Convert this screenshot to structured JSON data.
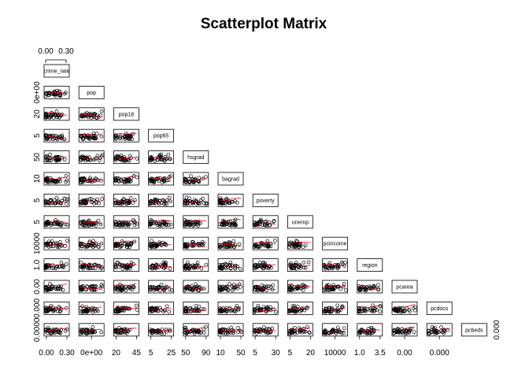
{
  "chart_data": {
    "type": "scatter",
    "subtype": "scatterplot-matrix-lower-triangle",
    "title": "Scatterplot Matrix",
    "variables": [
      "crime_rate",
      "pop",
      "pop18",
      "pop65",
      "hsgrad",
      "bagrad",
      "poverty",
      "unemp",
      "pcincome",
      "region",
      "pcarea",
      "pcdocs",
      "pcbeds"
    ],
    "panel_points": "open circles",
    "smoother": {
      "shown": true,
      "color": "#e0001b"
    },
    "top_axis": {
      "column": 1,
      "ticks": [
        "0.00",
        "0.30"
      ]
    },
    "left_axis": [
      {
        "row": 2,
        "ticks": [
          "0e+00"
        ]
      },
      {
        "row": 3,
        "ticks": [
          "20"
        ]
      },
      {
        "row": 4,
        "ticks": [
          "5"
        ]
      },
      {
        "row": 5,
        "ticks": [
          "50"
        ]
      },
      {
        "row": 6,
        "ticks": [
          "10"
        ]
      },
      {
        "row": 7,
        "ticks": [
          "5"
        ]
      },
      {
        "row": 8,
        "ticks": [
          "5"
        ]
      },
      {
        "row": 9,
        "ticks": [
          "10000"
        ]
      },
      {
        "row": 10,
        "ticks": [
          "1.0"
        ]
      },
      {
        "row": 11,
        "ticks": [
          "0.00"
        ]
      },
      {
        "row": 12,
        "ticks": [
          "0.000"
        ]
      },
      {
        "row": 13,
        "ticks": [
          "0.0000"
        ]
      }
    ],
    "bottom_axis": [
      {
        "column": 1,
        "ticks": [
          "0.00",
          "0.30"
        ]
      },
      {
        "column": 2,
        "ticks": [
          "0e+00"
        ]
      },
      {
        "column": 3,
        "ticks": [
          "20",
          "45"
        ]
      },
      {
        "column": 4,
        "ticks": [
          "5",
          "25"
        ]
      },
      {
        "column": 5,
        "ticks": [
          "50",
          "90"
        ]
      },
      {
        "column": 6,
        "ticks": [
          "10",
          "50"
        ]
      },
      {
        "column": 7,
        "ticks": [
          "5",
          "30"
        ]
      },
      {
        "column": 8,
        "ticks": [
          "5",
          "20"
        ]
      },
      {
        "column": 9,
        "ticks": [
          "10000"
        ]
      },
      {
        "column": 10,
        "ticks": [
          "1.0",
          "3.5"
        ]
      },
      {
        "column": 11,
        "ticks": [
          "0.00"
        ]
      },
      {
        "column": 12,
        "ticks": [
          "0.000"
        ]
      }
    ],
    "right_axis": {
      "row": 13,
      "ticks": [
        "0.000"
      ]
    }
  }
}
